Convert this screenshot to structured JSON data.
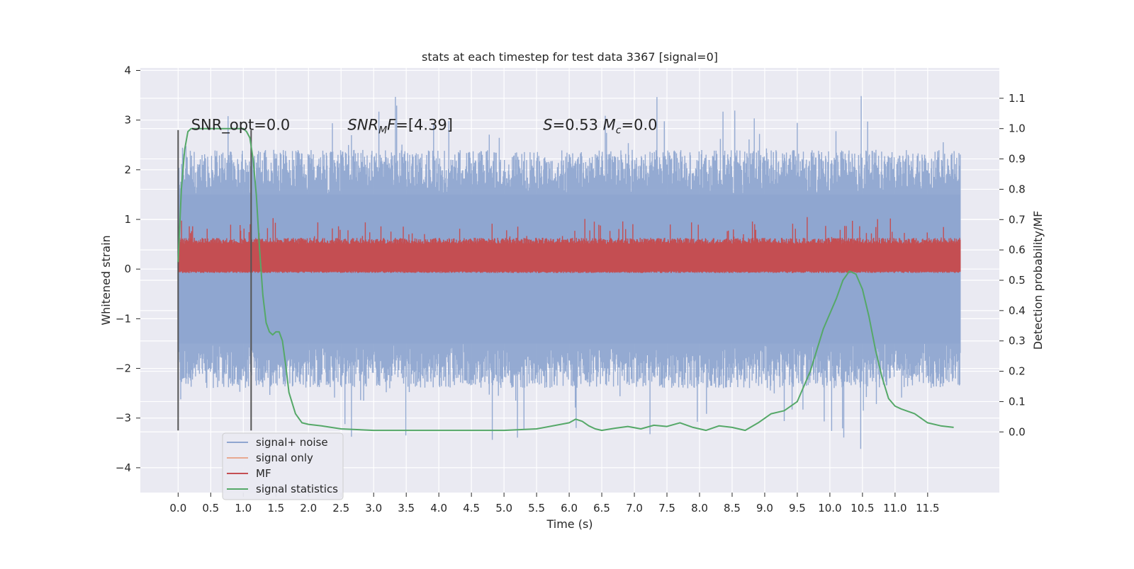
{
  "chart_data": {
    "type": "line",
    "title": "stats at each timestep for test data 3367 [signal=0]",
    "xlabel": "Time (s)",
    "ylabel_left": "Whitened strain",
    "ylabel_right": "Detection probability/MF",
    "xlim": [
      -0.58,
      12.6
    ],
    "ylim_left": [
      -4.5,
      4.05
    ],
    "ylim_right": [
      -0.2,
      1.2
    ],
    "x_ticks": [
      0.0,
      0.5,
      1.0,
      1.5,
      2.0,
      2.5,
      3.0,
      3.5,
      4.0,
      4.5,
      5.0,
      5.5,
      6.0,
      6.5,
      7.0,
      7.5,
      8.0,
      8.5,
      9.0,
      9.5,
      10.0,
      10.5,
      11.0,
      11.5
    ],
    "x_tick_labels": [
      "0.0",
      "0.5",
      "1.0",
      "1.5",
      "2.0",
      "2.5",
      "3.0",
      "3.5",
      "4.0",
      "4.5",
      "5.0",
      "5.5",
      "6.0",
      "6.5",
      "7.0",
      "7.5",
      "8.0",
      "8.5",
      "9.0",
      "9.5",
      "10.0",
      "10.5",
      "11.0",
      "11.5"
    ],
    "y_left_ticks": [
      -4,
      -3,
      -2,
      -1,
      0,
      1,
      2,
      3,
      4
    ],
    "y_left_tick_labels": [
      "−4",
      "−3",
      "−2",
      "−1",
      "0",
      "1",
      "2",
      "3",
      "4"
    ],
    "y_right_ticks": [
      0.0,
      0.1,
      0.2,
      0.3,
      0.4,
      0.5,
      0.6,
      0.7,
      0.8,
      0.9,
      1.0,
      1.1
    ],
    "y_right_tick_labels": [
      "0.0",
      "0.1",
      "0.2",
      "0.3",
      "0.4",
      "0.5",
      "0.6",
      "0.7",
      "0.8",
      "0.9",
      "1.0",
      "1.1"
    ],
    "grid": true,
    "annotations": [
      {
        "x": 0.2,
        "y_left": 2.9,
        "text": "SNR_opt=0.0"
      },
      {
        "x": 2.6,
        "y_left": 2.9,
        "text": "SNR_MF=[4.39]"
      },
      {
        "x": 5.6,
        "y_left": 2.9,
        "text": "S=0.53   M_c=0.0"
      }
    ],
    "vertical_markers": [
      {
        "x": 0.0,
        "y_left_range": [
          -3.25,
          2.8
        ]
      },
      {
        "x": 1.12,
        "y_left_range": [
          -3.25,
          2.8
        ]
      }
    ],
    "noise_band": {
      "series": "signal+ noise",
      "axis": "left",
      "x_range": [
        0.0,
        12.0
      ],
      "typical_range": [
        -1.5,
        1.5
      ],
      "extremes": [
        -4.1,
        3.65
      ]
    },
    "mf_band": {
      "series": "MF",
      "axis": "right",
      "x_range": [
        0.0,
        12.0
      ],
      "typical_range": [
        0.53,
        0.62
      ],
      "peaks_to": 0.69
    },
    "signal_only": {
      "series": "signal only",
      "axis": "left",
      "x": [
        0.0,
        12.0
      ],
      "y": [
        0.0,
        0.0
      ]
    },
    "signal_statistics": {
      "series": "signal statistics",
      "axis": "right",
      "x": [
        0.0,
        0.05,
        0.1,
        0.15,
        0.2,
        0.3,
        0.4,
        0.5,
        0.6,
        0.7,
        0.8,
        0.9,
        1.0,
        1.05,
        1.1,
        1.15,
        1.2,
        1.25,
        1.3,
        1.35,
        1.4,
        1.45,
        1.5,
        1.55,
        1.6,
        1.65,
        1.7,
        1.8,
        1.9,
        2.0,
        2.2,
        2.5,
        3.0,
        3.5,
        4.0,
        4.5,
        5.0,
        5.5,
        6.0,
        6.1,
        6.2,
        6.3,
        6.4,
        6.5,
        6.7,
        6.9,
        7.1,
        7.3,
        7.5,
        7.7,
        7.9,
        8.1,
        8.3,
        8.5,
        8.7,
        8.9,
        9.1,
        9.3,
        9.5,
        9.7,
        9.8,
        9.9,
        10.0,
        10.1,
        10.2,
        10.3,
        10.4,
        10.5,
        10.6,
        10.7,
        10.8,
        10.9,
        11.0,
        11.1,
        11.3,
        11.5,
        11.7,
        11.9
      ],
      "y": [
        0.56,
        0.8,
        0.93,
        0.99,
        1.0,
        1.0,
        1.0,
        1.0,
        1.0,
        1.0,
        1.0,
        1.0,
        1.0,
        0.99,
        0.97,
        0.9,
        0.78,
        0.6,
        0.45,
        0.36,
        0.33,
        0.32,
        0.33,
        0.33,
        0.3,
        0.22,
        0.13,
        0.06,
        0.03,
        0.025,
        0.02,
        0.01,
        0.005,
        0.005,
        0.005,
        0.005,
        0.005,
        0.01,
        0.03,
        0.042,
        0.035,
        0.02,
        0.01,
        0.005,
        0.012,
        0.018,
        0.01,
        0.022,
        0.018,
        0.03,
        0.015,
        0.005,
        0.02,
        0.015,
        0.005,
        0.03,
        0.06,
        0.07,
        0.1,
        0.2,
        0.27,
        0.34,
        0.39,
        0.44,
        0.5,
        0.53,
        0.52,
        0.47,
        0.38,
        0.27,
        0.18,
        0.11,
        0.085,
        0.075,
        0.06,
        0.03,
        0.02,
        0.015
      ]
    },
    "legend": {
      "placement": "lower-left",
      "entries": [
        {
          "label": "signal+ noise",
          "color": "#8fa6d0"
        },
        {
          "label": "signal only",
          "color": "#e8a890"
        },
        {
          "label": "MF",
          "color": "#c44e52"
        },
        {
          "label": "signal statistics",
          "color": "#55a868"
        }
      ]
    },
    "colors": {
      "plot_background": "#eaeaf2",
      "grid": "#ffffff",
      "marker_lines": "#555555"
    }
  }
}
